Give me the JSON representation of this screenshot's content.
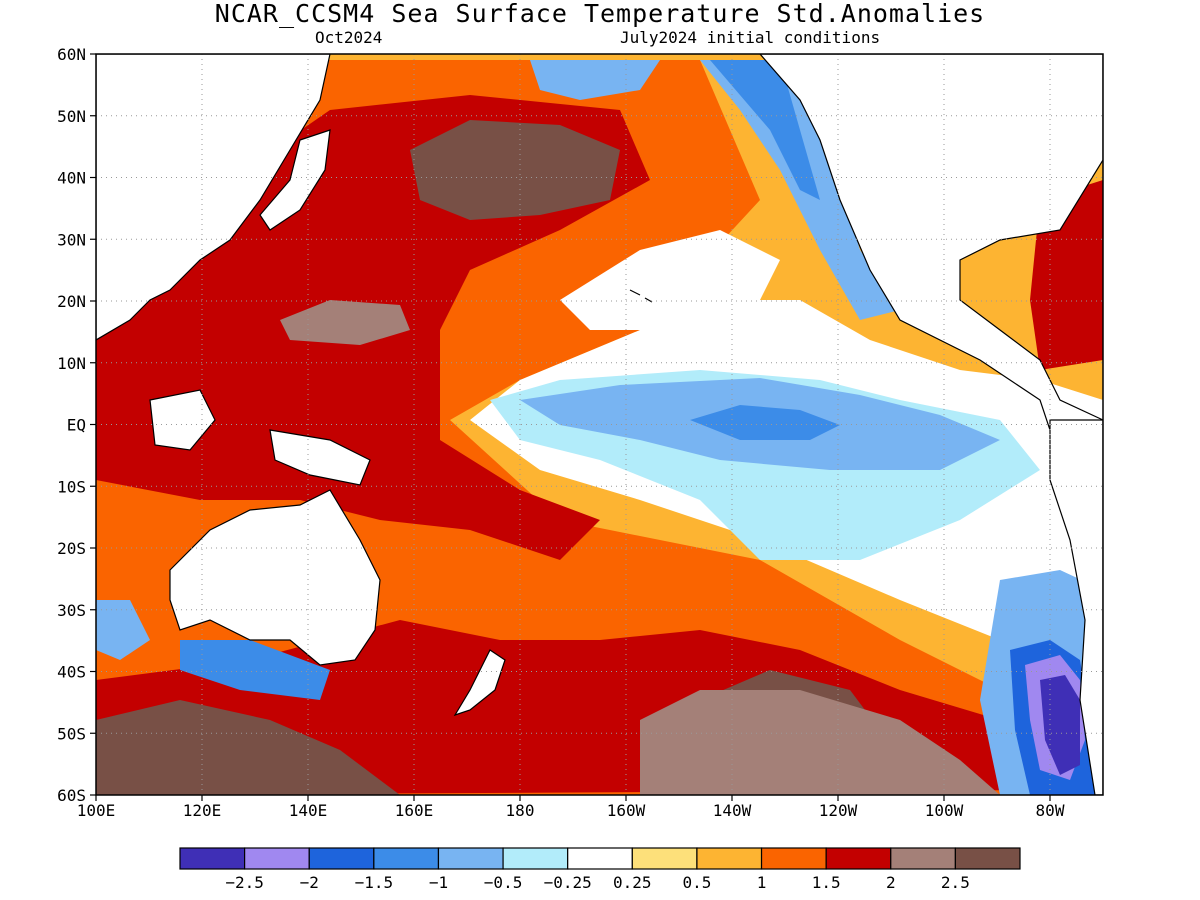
{
  "header": {
    "title": "NCAR_CCSM4 Sea Surface Temperature Std.Anomalies",
    "subtitle_left": "Oct2024",
    "subtitle_right": "July2024 initial conditions"
  },
  "map": {
    "lat_labels": [
      "60N",
      "50N",
      "40N",
      "30N",
      "20N",
      "10N",
      "EQ",
      "10S",
      "20S",
      "30S",
      "40S",
      "50S",
      "60S"
    ],
    "lon_labels": [
      "100E",
      "120E",
      "140E",
      "160E",
      "180",
      "160W",
      "140W",
      "120W",
      "100W",
      "80W"
    ],
    "extent": {
      "lon_min": 100,
      "lon_max": 290,
      "lat_min": -60,
      "lat_max": 60
    },
    "gridlines": true
  },
  "legend": {
    "colors": [
      "#3f2fb6",
      "#a088f0",
      "#1e64dc",
      "#3c8ce8",
      "#78b4f2",
      "#b2ecfa",
      "#ffffff",
      "#fde07a",
      "#fdb432",
      "#fa6400",
      "#c30000",
      "#a48078",
      "#785046"
    ],
    "labels": [
      "-2.5",
      "-2",
      "-1.5",
      "-1",
      "-0.5",
      "-0.25",
      "0.25",
      "0.5",
      "1",
      "1.5",
      "2",
      "2.5"
    ]
  }
}
